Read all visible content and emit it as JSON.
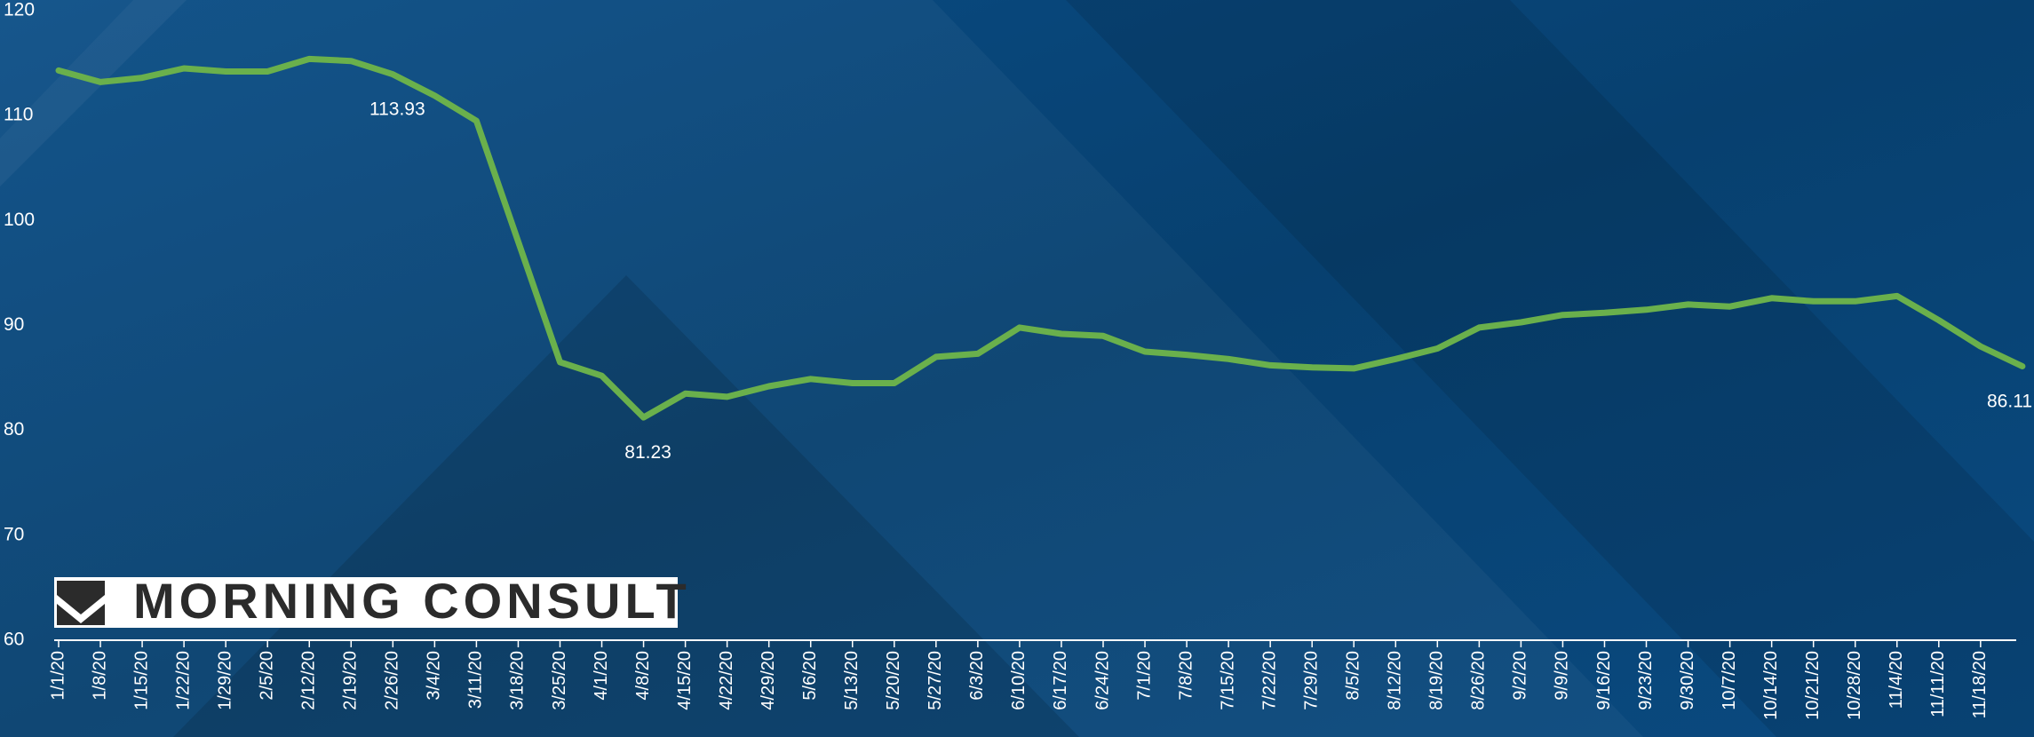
{
  "logo": "MORNING CONSULT",
  "chart_data": {
    "type": "line",
    "categories": [
      "1/1/20",
      "1/8/20",
      "1/15/20",
      "1/22/20",
      "1/29/20",
      "2/5/20",
      "2/12/20",
      "2/19/20",
      "2/26/20",
      "3/4/20",
      "3/11/20",
      "3/18/20",
      "3/25/20",
      "4/1/20",
      "4/8/20",
      "4/15/20",
      "4/22/20",
      "4/29/20",
      "5/6/20",
      "5/13/20",
      "5/20/20",
      "5/27/20",
      "6/3/20",
      "6/10/20",
      "6/17/20",
      "6/24/20",
      "7/1/20",
      "7/8/20",
      "7/15/20",
      "7/22/20",
      "7/29/20",
      "8/5/20",
      "8/12/20",
      "8/19/20",
      "8/26/20",
      "9/2/20",
      "9/9/20",
      "9/16/20",
      "9/23/20",
      "9/30/20",
      "10/7/20",
      "10/14/20",
      "10/21/20",
      "10/28/20",
      "11/4/20",
      "11/11/20",
      "11/18/20",
      null
    ],
    "series": [
      {
        "color": "#6ab04c",
        "values": [
          114.3,
          113.2,
          113.6,
          114.5,
          114.2,
          114.2,
          115.4,
          115.2,
          113.93,
          111.9,
          109.5,
          98,
          86.5,
          85.2,
          81.23,
          83.5,
          83.2,
          84.2,
          84.9,
          84.5,
          84.5,
          87,
          87.3,
          89.8,
          89.2,
          89.0,
          87.5,
          87.2,
          86.8,
          86.2,
          86.0,
          85.9,
          86.8,
          87.8,
          89.8,
          90.3,
          91.0,
          91.2,
          91.5,
          92.0,
          91.8,
          92.6,
          92.3,
          92.3,
          92.8,
          90.5,
          88.0,
          86.11
        ],
        "value_labels": [
          null,
          null,
          null,
          null,
          null,
          null,
          null,
          null,
          "113.93",
          null,
          null,
          null,
          null,
          null,
          "81.23",
          null,
          null,
          null,
          null,
          null,
          null,
          null,
          null,
          null,
          null,
          null,
          null,
          null,
          null,
          null,
          null,
          null,
          null,
          null,
          null,
          null,
          null,
          null,
          null,
          null,
          null,
          null,
          null,
          null,
          null,
          null,
          null,
          "86.11"
        ]
      }
    ],
    "ylim": [
      60,
      120
    ],
    "yticks": [
      60,
      70,
      80,
      90,
      100,
      110,
      120
    ],
    "grid": false
  }
}
